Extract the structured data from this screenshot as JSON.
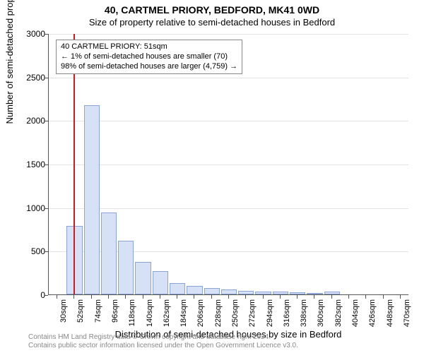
{
  "title_main": "40, CARTMEL PRIORY, BEDFORD, MK41 0WD",
  "title_sub": "Size of property relative to semi-detached houses in Bedford",
  "ylabel": "Number of semi-detached properties",
  "xlabel": "Distribution of semi-detached houses by size in Bedford",
  "chart": {
    "type": "histogram",
    "background_color": "#ffffff",
    "grid_color": "#e3e3e3",
    "axis_color": "#555555",
    "ylim": [
      0,
      3000
    ],
    "yticks": [
      0,
      500,
      1000,
      1500,
      2000,
      2500,
      3000
    ],
    "x_start": 30,
    "x_step": 22,
    "x_count": 21,
    "x_unit": "sqm",
    "bar_color_fill": "#d6e1f5",
    "bar_color_stroke": "#8aa4d6",
    "marker_color": "#d11919",
    "marker_value": 51,
    "values": [
      0,
      790,
      2170,
      940,
      620,
      370,
      270,
      130,
      100,
      75,
      55,
      40,
      35,
      30,
      25,
      20,
      35,
      0,
      0,
      0,
      0
    ],
    "info_box": {
      "border_color": "#888888",
      "bg_color": "#ffffff",
      "lines": [
        "40 CARTMEL PRIORY: 51sqm",
        "← 1% of semi-detached houses are smaller (70)",
        "98% of semi-detached houses are larger (4,759) →"
      ]
    }
  },
  "footer": {
    "color": "#888888",
    "line1": "Contains HM Land Registry data © Crown copyright and database right 2024.",
    "line2": "Contains public sector information licensed under the Open Government Licence v3.0."
  }
}
